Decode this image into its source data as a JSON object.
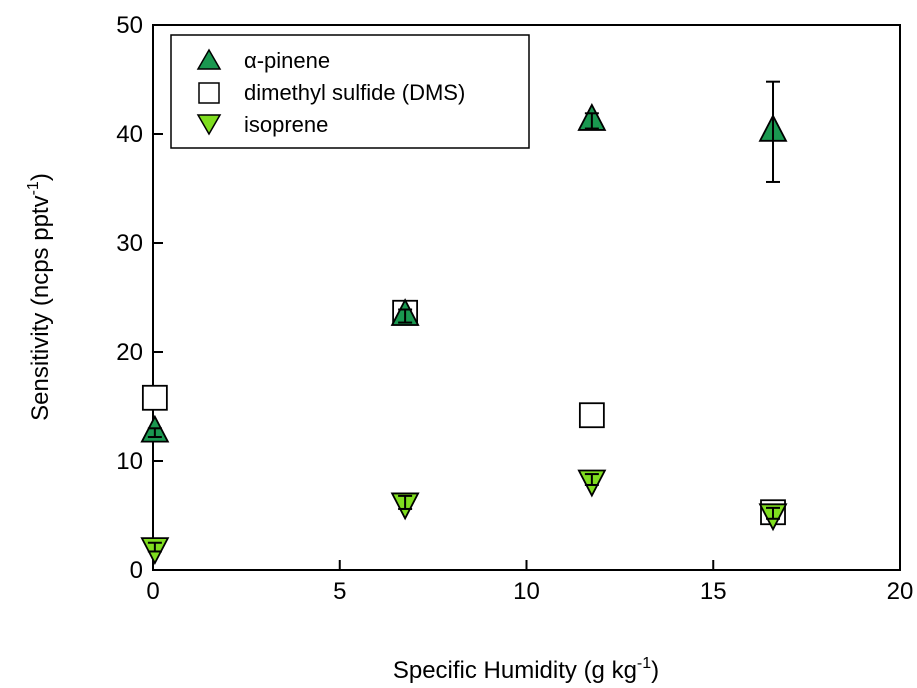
{
  "chart_data": {
    "type": "scatter",
    "xlabel": {
      "main": "Specific Humidity (g kg",
      "sup": "-1",
      "close": ")"
    },
    "ylabel": {
      "main": "Sensitivity (ncps pptv",
      "sup": "-1",
      "close": ")"
    },
    "xlim": [
      0,
      20
    ],
    "ylim": [
      0,
      50
    ],
    "xticks": [
      0,
      5,
      10,
      15,
      20
    ],
    "yticks": [
      0,
      10,
      20,
      30,
      40,
      50
    ],
    "legend_position": "top-left",
    "grid": false,
    "series": [
      {
        "name": "α-pinene",
        "marker": "triangle-up",
        "color": "#1a9850",
        "points": [
          {
            "x": 0.05,
            "y": 12.6,
            "err": 0.4
          },
          {
            "x": 6.75,
            "y": 23.3,
            "err": 0.6
          },
          {
            "x": 11.75,
            "y": 41.2,
            "err": 0.7
          },
          {
            "x": 16.6,
            "y": 40.2,
            "err": 4.6
          }
        ]
      },
      {
        "name": "dimethyl sulfide (DMS)",
        "marker": "square-open",
        "color": "#ffffff",
        "points": [
          {
            "x": 0.05,
            "y": 15.8
          },
          {
            "x": 6.75,
            "y": 23.6
          },
          {
            "x": 11.75,
            "y": 14.2
          },
          {
            "x": 16.6,
            "y": 5.3
          }
        ]
      },
      {
        "name": "isoprene",
        "marker": "triangle-down",
        "color": "#7fdd1f",
        "points": [
          {
            "x": 0.05,
            "y": 2.1,
            "err": 0.4
          },
          {
            "x": 6.75,
            "y": 6.2,
            "err": 0.6
          },
          {
            "x": 11.75,
            "y": 8.3,
            "err": 0.5
          },
          {
            "x": 16.6,
            "y": 5.2,
            "err": 0.5
          }
        ]
      }
    ]
  }
}
